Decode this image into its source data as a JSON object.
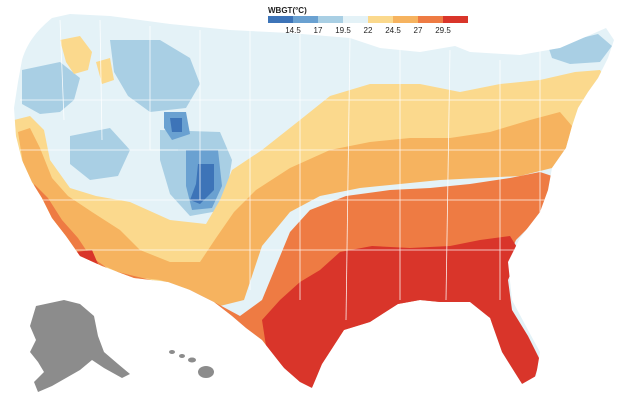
{
  "legend": {
    "title": "WBGT(°C)",
    "ticks": [
      "14.5",
      "17",
      "19.5",
      "22",
      "24.5",
      "27",
      "29.5"
    ],
    "colors": [
      "#3d74b8",
      "#6aa1d1",
      "#a9cfe4",
      "#e4f2f7",
      "#fbd98d",
      "#f6b35f",
      "#ee7b43",
      "#d9352a"
    ]
  },
  "map": {
    "regions": [
      "continental-us",
      "alaska",
      "hawaii"
    ],
    "zone_colors": {
      "cool": "#e4f2f7",
      "cooler": "#a9cfe4",
      "blue": "#6aa1d1",
      "deep_blue": "#3d74b8",
      "mild": "#fbd98d",
      "warm": "#f6b35f",
      "hot": "#ee7b43",
      "very_hot": "#d9352a",
      "no_data": "#8c8c8c"
    },
    "border_color": "#ffffff"
  }
}
